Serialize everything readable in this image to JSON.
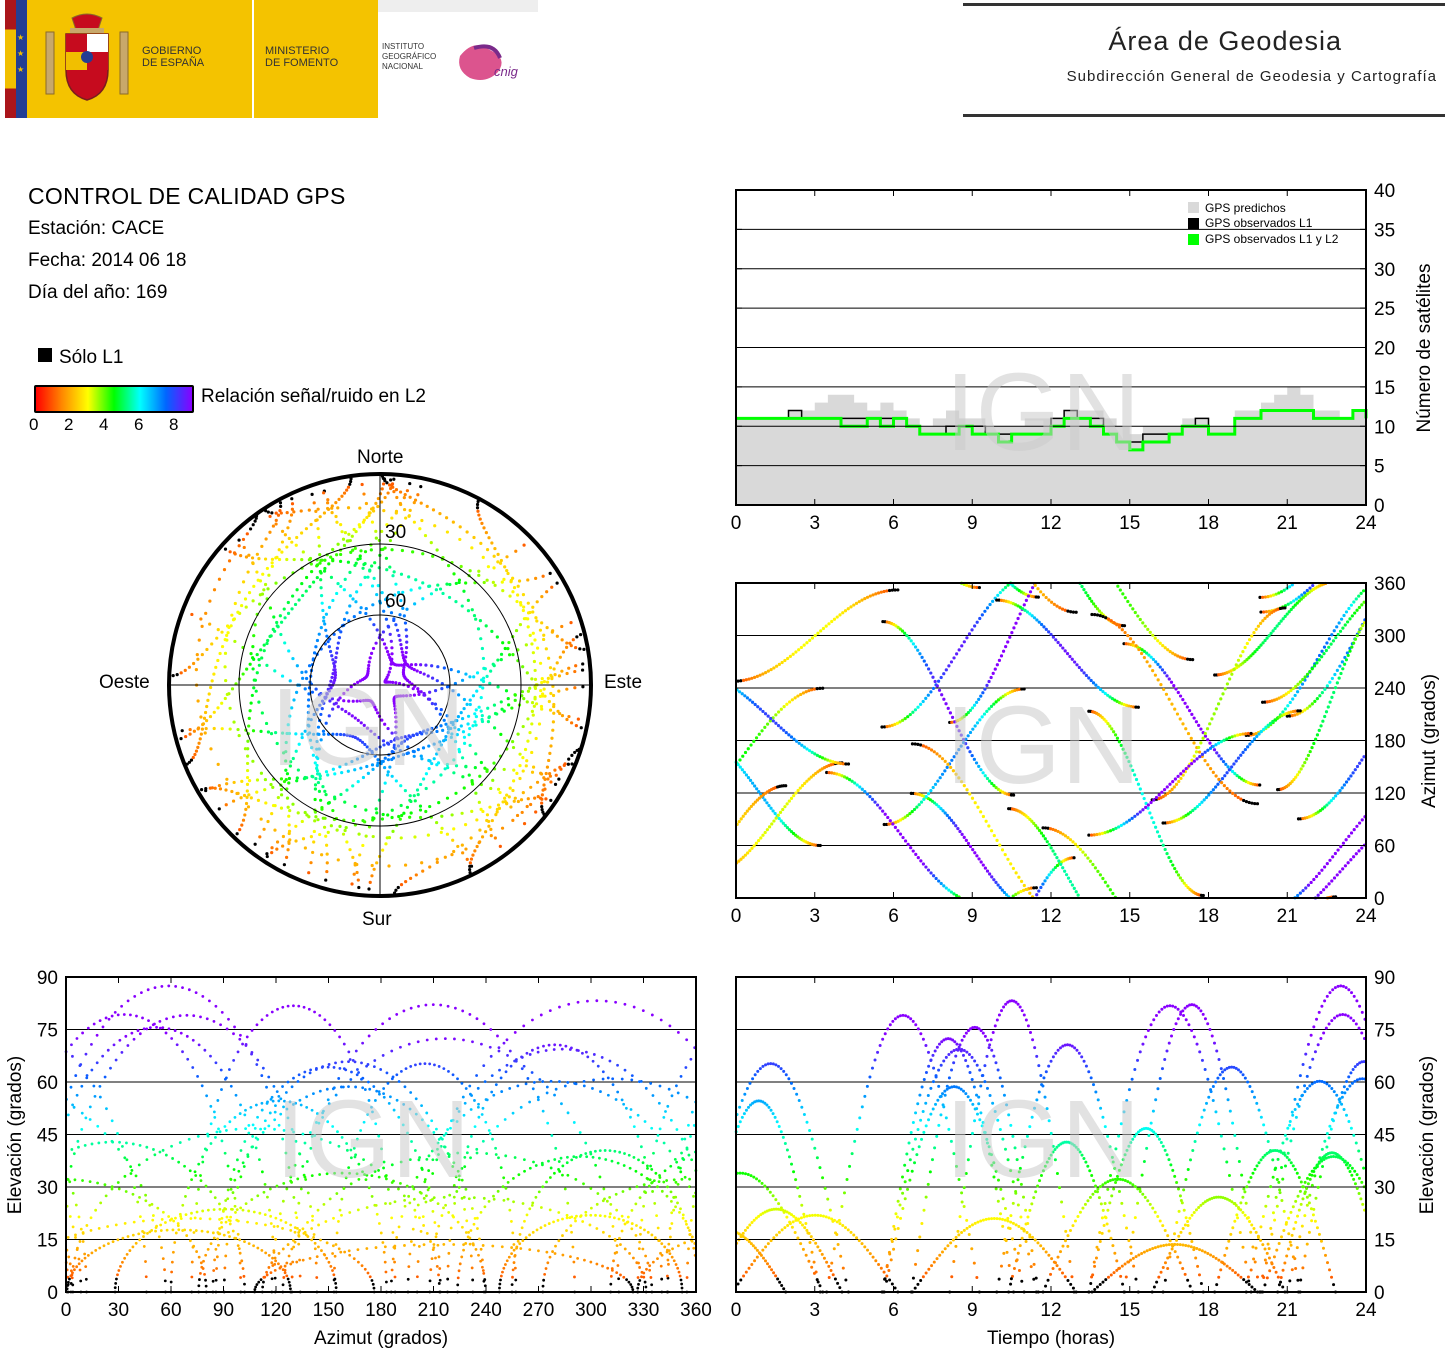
{
  "header": {
    "gov_line1": "GOBIERNO",
    "gov_line2": "DE ESPAÑA",
    "min_line1": "MINISTERIO",
    "min_line2": "DE FOMENTO",
    "ign_line1": "INSTITUTO",
    "ign_line2": "GEOGRÁFICO",
    "ign_line3": "NACIONAL",
    "cnig": "cnig",
    "area_title": "Área de Geodesia",
    "area_subtitle": "Subdirección General de Geodesia y Cartografía"
  },
  "info": {
    "title": "CONTROL DE CALIDAD GPS",
    "station": "Estación: CACE",
    "date": "Fecha: 2014 06 18",
    "doy": "Día del año: 169"
  },
  "legend": {
    "solo_l1": "Sólo L1",
    "snr_label": "Relación señal/ruido en L2",
    "ticks": [
      "0",
      "2",
      "4",
      "6",
      "8"
    ]
  },
  "watermark": "IGN",
  "colors": {
    "predicted": "#d9d9d9",
    "observed_l1": "#000000",
    "observed_l1_l2": "#00ff00",
    "snr_scale": [
      "#ff0000",
      "#ff8800",
      "#ffff00",
      "#00ff00",
      "#00ffff",
      "#0066ff",
      "#8800ff"
    ]
  },
  "chart_data": [
    {
      "id": "skyplot",
      "type": "scatter",
      "projection": "polar",
      "cardinal_labels": {
        "north": "Norte",
        "south": "Sur",
        "east": "Este",
        "west": "Oeste"
      },
      "ring_labels": [
        "30",
        "60"
      ],
      "elevation_rings": [
        30,
        60
      ]
    },
    {
      "id": "satcount",
      "type": "area",
      "xlabel": "",
      "ylabel": "Número de satélites",
      "xlim": [
        0,
        24
      ],
      "ylim": [
        0,
        40
      ],
      "xticks": [
        "0",
        "3",
        "6",
        "9",
        "12",
        "15",
        "18",
        "21",
        "24"
      ],
      "yticks": [
        "0",
        "5",
        "10",
        "15",
        "20",
        "25",
        "30",
        "35",
        "40"
      ],
      "legend_position": "top-right",
      "series": [
        {
          "name": "GPS predichos",
          "x": [
            0,
            1.5,
            2,
            2.5,
            3,
            3.5,
            4,
            4.5,
            5,
            5.5,
            6,
            6.5,
            7,
            7.5,
            8,
            8.5,
            9,
            9.5,
            10,
            10.5,
            11,
            11.5,
            12,
            12.5,
            13,
            13.5,
            14,
            14.5,
            15,
            15.5,
            16,
            16.5,
            17,
            17.5,
            18,
            18.5,
            19,
            19.5,
            20,
            20.5,
            21,
            21.5,
            22,
            22.5,
            23,
            23.5,
            24
          ],
          "y": [
            11,
            11,
            12,
            12,
            13,
            14,
            14,
            13,
            12,
            13,
            12,
            11,
            10,
            11,
            12,
            11,
            11,
            10,
            10,
            10,
            11,
            11,
            11,
            12,
            12,
            12,
            11,
            10,
            9,
            10,
            10,
            10,
            11,
            11,
            10,
            10,
            12,
            12,
            13,
            14,
            15,
            14,
            12,
            12,
            11,
            12,
            12
          ]
        },
        {
          "name": "GPS observados L1",
          "x": [
            0,
            1.5,
            2,
            2.5,
            3,
            3.5,
            4,
            4.5,
            5,
            5.5,
            6,
            6.5,
            7,
            7.5,
            8,
            8.5,
            9,
            9.5,
            10,
            10.5,
            11,
            11.5,
            12,
            12.5,
            13,
            13.5,
            14,
            14.5,
            15,
            15.5,
            16,
            16.5,
            17,
            17.5,
            18,
            18.5,
            19,
            19.5,
            20,
            20.5,
            21,
            21.5,
            22,
            22.5,
            23,
            23.5,
            24
          ],
          "y": [
            11,
            11,
            12,
            11,
            11,
            11,
            11,
            11,
            11,
            11,
            11,
            10,
            9,
            9,
            10,
            10,
            10,
            9,
            9,
            9,
            9,
            9,
            11,
            12,
            11,
            11,
            9,
            8,
            8,
            9,
            9,
            9,
            10,
            11,
            9,
            9,
            11,
            11,
            12,
            12,
            12,
            12,
            11,
            11,
            11,
            12,
            12
          ]
        },
        {
          "name": "GPS observados L1 y L2",
          "x": [
            0,
            1.5,
            2,
            2.5,
            3,
            3.5,
            4,
            4.5,
            5,
            5.5,
            6,
            6.5,
            7,
            7.5,
            8,
            8.5,
            9,
            9.5,
            10,
            10.5,
            11,
            11.5,
            12,
            12.5,
            13,
            13.5,
            14,
            14.5,
            15,
            15.5,
            16,
            16.5,
            17,
            17.5,
            18,
            18.5,
            19,
            19.5,
            20,
            20.5,
            21,
            21.5,
            22,
            22.5,
            23,
            23.5,
            24
          ],
          "y": [
            11,
            11,
            11,
            11,
            11,
            11,
            10,
            10,
            11,
            10,
            11,
            10,
            9,
            9,
            9,
            10,
            9,
            9,
            8,
            9,
            9,
            9,
            10,
            11,
            11,
            10,
            9,
            8,
            7,
            8,
            8,
            9,
            10,
            10,
            9,
            9,
            11,
            11,
            12,
            12,
            12,
            12,
            11,
            11,
            11,
            12,
            11
          ]
        }
      ]
    },
    {
      "id": "azimuth",
      "type": "scatter",
      "ylabel": "Azimut (grados)",
      "xlim": [
        0,
        24
      ],
      "ylim": [
        0,
        360
      ],
      "xticks": [
        "0",
        "3",
        "6",
        "9",
        "12",
        "15",
        "18",
        "21",
        "24"
      ],
      "yticks": [
        "0",
        "60",
        "120",
        "180",
        "240",
        "300",
        "360"
      ]
    },
    {
      "id": "elev_az",
      "type": "scatter",
      "xlabel": "Azimut (grados)",
      "ylabel": "Elevación (grados)",
      "xlim": [
        0,
        360
      ],
      "ylim": [
        0,
        90
      ],
      "xticks": [
        "0",
        "30",
        "60",
        "90",
        "120",
        "150",
        "180",
        "210",
        "240",
        "270",
        "300",
        "330",
        "360"
      ],
      "yticks": [
        "0",
        "15",
        "30",
        "45",
        "60",
        "75",
        "90"
      ]
    },
    {
      "id": "elev_time",
      "type": "line",
      "xlabel": "Tiempo (horas)",
      "ylabel": "Elevación (grados)",
      "xlim": [
        0,
        24
      ],
      "ylim": [
        0,
        90
      ],
      "xticks": [
        "0",
        "3",
        "6",
        "9",
        "12",
        "15",
        "18",
        "21",
        "24"
      ],
      "yticks": [
        "0",
        "15",
        "30",
        "45",
        "60",
        "75",
        "90"
      ]
    }
  ]
}
